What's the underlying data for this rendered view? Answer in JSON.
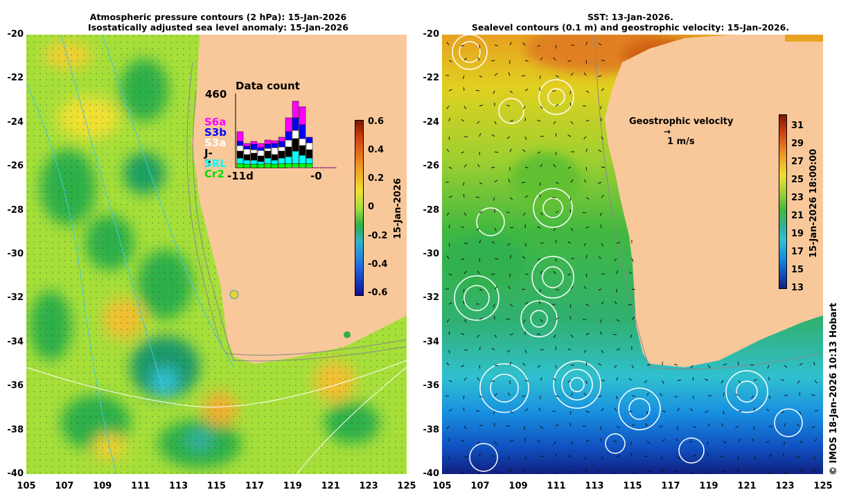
{
  "left_panel": {
    "title_line1": "Atmospheric pressure contours (2 hPa): 15-Jan-2026",
    "title_line2": "Isostatically adjusted sea level anomaly: 15-Jan-2026",
    "colorbar_label": "15-Jan-2026",
    "colorbar_ticks": [
      "0.6",
      "0.4",
      "0.2",
      "0",
      "-0.2",
      "-0.4",
      "-0.6"
    ],
    "inset": {
      "title": "Data count",
      "max_label": "460",
      "x_start": "-11d",
      "x_end": "-0",
      "satellites": [
        {
          "name": "S6a",
          "color": "#ff00ff"
        },
        {
          "name": "S3b",
          "color": "#0000ff"
        },
        {
          "name": "S3a",
          "color": "#ffffff"
        },
        {
          "name": "J-3",
          "color": "#000000"
        },
        {
          "name": "SRL",
          "color": "#00ffff"
        },
        {
          "name": "Cr2",
          "color": "#00ff00"
        }
      ]
    }
  },
  "right_panel": {
    "title_line1": "SST: 13-Jan-2026.",
    "title_line2": "Sealevel contours (0.1 m) and geostrophic velocity: 15-Jan-2026.",
    "colorbar_label": "15-Jan-2026 18:00:00",
    "colorbar_ticks": [
      "31",
      "29",
      "27",
      "25",
      "23",
      "21",
      "19",
      "17",
      "15",
      "13"
    ],
    "velocity_legend_title": "Geostrophic velocity",
    "velocity_legend_scale": "1 m/s"
  },
  "axes": {
    "lat_ticks": [
      "-20",
      "-22",
      "-24",
      "-26",
      "-28",
      "-30",
      "-32",
      "-34",
      "-36",
      "-38",
      "-40"
    ],
    "lon_ticks": [
      "105",
      "107",
      "109",
      "111",
      "113",
      "115",
      "117",
      "119",
      "121",
      "123",
      "125"
    ]
  },
  "credit": "© IMOS 18-Jan-2026 10:13 Hobart",
  "colors": {
    "land": "#f8c89a",
    "sla_base": "#a8e03c",
    "sst_warm": "#e8a020",
    "sst_cool": "#1050c0"
  }
}
